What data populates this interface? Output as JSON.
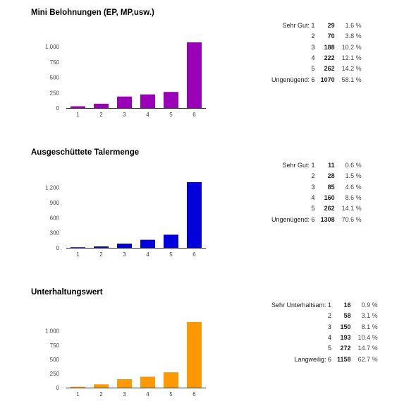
{
  "sections": [
    {
      "title": "Mini Belohnungen (EP, MP,usw.)",
      "color": "#9900b8",
      "rows": [
        {
          "label": "Sehr Gut: 1",
          "count": "29",
          "pct": "1.6 %"
        },
        {
          "label": "2",
          "count": "70",
          "pct": "3.8 %"
        },
        {
          "label": "3",
          "count": "188",
          "pct": "10.2 %"
        },
        {
          "label": "4",
          "count": "222",
          "pct": "12.1 %"
        },
        {
          "label": "5",
          "count": "262",
          "pct": "14.2 %"
        },
        {
          "label": "Ungenügend: 6",
          "count": "1070",
          "pct": "58.1 %"
        }
      ]
    },
    {
      "title": "Ausgeschüttete Talermenge",
      "color": "#0000dd",
      "rows": [
        {
          "label": "Sehr Gut: 1",
          "count": "11",
          "pct": "0.6 %"
        },
        {
          "label": "2",
          "count": "28",
          "pct": "1.5 %"
        },
        {
          "label": "3",
          "count": "85",
          "pct": "4.6 %"
        },
        {
          "label": "4",
          "count": "160",
          "pct": "8.6 %"
        },
        {
          "label": "5",
          "count": "262",
          "pct": "14.1 %"
        },
        {
          "label": "Ungenügend: 6",
          "count": "1308",
          "pct": "70.6 %"
        }
      ]
    },
    {
      "title": "Unterhaltungswert",
      "color": "#ff9900",
      "rows": [
        {
          "label": "Sehr Unterhaltsam: 1",
          "count": "16",
          "pct": "0.9 %"
        },
        {
          "label": "2",
          "count": "58",
          "pct": "3.1 %"
        },
        {
          "label": "3",
          "count": "150",
          "pct": "8.1 %"
        },
        {
          "label": "4",
          "count": "193",
          "pct": "10.4 %"
        },
        {
          "label": "5",
          "count": "272",
          "pct": "14.7 %"
        },
        {
          "label": "Langweilig: 6",
          "count": "1158",
          "pct": "62.7 %"
        }
      ]
    }
  ],
  "chart_data": [
    {
      "type": "bar",
      "title": "Mini Belohnungen (EP, MP,usw.)",
      "categories": [
        "1",
        "2",
        "3",
        "4",
        "5",
        "6"
      ],
      "values": [
        29,
        70,
        188,
        222,
        262,
        1070
      ],
      "yticks": [
        0,
        250,
        500,
        750,
        1000
      ],
      "ytick_labels": [
        "0",
        "250",
        "500",
        "750",
        "1.000"
      ],
      "ylim": [
        0,
        1070
      ],
      "color": "#9900b8",
      "grid": false
    },
    {
      "type": "bar",
      "title": "Ausgeschüttete Talermenge",
      "categories": [
        "1",
        "2",
        "3",
        "4",
        "5",
        "6"
      ],
      "values": [
        11,
        28,
        85,
        160,
        262,
        1308
      ],
      "yticks": [
        0,
        300,
        600,
        900,
        1200
      ],
      "ytick_labels": [
        "0",
        "300",
        "600",
        "900",
        "1.200"
      ],
      "ylim": [
        0,
        1308
      ],
      "color": "#0000dd",
      "grid": false
    },
    {
      "type": "bar",
      "title": "Unterhaltungswert",
      "categories": [
        "1",
        "2",
        "3",
        "4",
        "5",
        "6"
      ],
      "values": [
        16,
        58,
        150,
        193,
        272,
        1158
      ],
      "yticks": [
        0,
        250,
        500,
        750,
        1000
      ],
      "ytick_labels": [
        "0",
        "250",
        "500",
        "750",
        "1.000"
      ],
      "ylim": [
        0,
        1158
      ],
      "color": "#ff9900",
      "grid": false
    }
  ]
}
